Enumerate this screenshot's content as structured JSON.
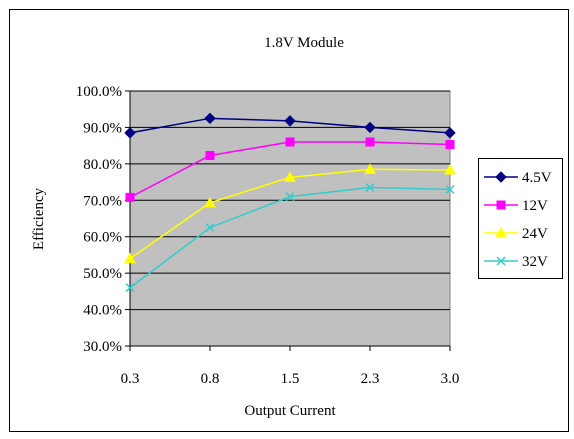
{
  "chart_data": {
    "type": "line",
    "title": "1.8V Module",
    "xlabel": "Output Current",
    "ylabel": "Efficiency",
    "categories": [
      "0.3",
      "0.8",
      "1.5",
      "2.3",
      "3.0"
    ],
    "ylim": [
      30,
      100
    ],
    "y_ticks": [
      "30.0%",
      "40.0%",
      "50.0%",
      "60.0%",
      "70.0%",
      "80.0%",
      "90.0%",
      "100.0%"
    ],
    "grid": true,
    "legend_position": "right",
    "plot_background": "#c0c0c0",
    "series": [
      {
        "name": "4.5V",
        "values": [
          88.5,
          92.5,
          91.8,
          90.0,
          88.5
        ],
        "color": "#000080",
        "marker": "diamond"
      },
      {
        "name": "12V",
        "values": [
          70.8,
          82.3,
          86.0,
          86.0,
          85.3
        ],
        "color": "#ff00ff",
        "marker": "square"
      },
      {
        "name": "24V",
        "values": [
          54.0,
          69.3,
          76.3,
          78.5,
          78.3
        ],
        "color": "#ffff00",
        "marker": "triangle"
      },
      {
        "name": "32V",
        "values": [
          46.0,
          62.5,
          71.0,
          73.5,
          73.0
        ],
        "color": "#33cccc",
        "marker": "x"
      }
    ]
  }
}
